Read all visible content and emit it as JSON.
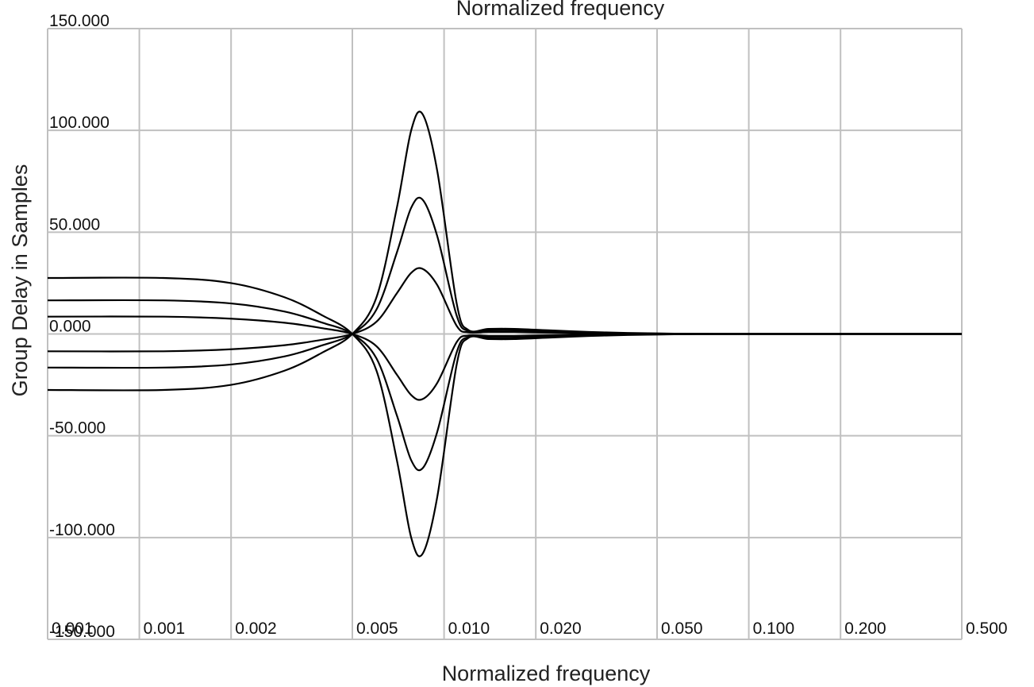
{
  "chart_data": {
    "type": "line",
    "title": "Normalized frequency",
    "xlabel": "Normalized frequency",
    "ylabel": "Group Delay in Samples",
    "xscale": "log",
    "xlim": [
      0.0005,
      0.5
    ],
    "ylim": [
      -150,
      150
    ],
    "grid": true,
    "x_ticks": [
      0.0005,
      0.001,
      0.002,
      0.005,
      0.01,
      0.02,
      0.05,
      0.1,
      0.2,
      0.5
    ],
    "x_tick_labels": [
      "0.001",
      "0.001",
      "0.002",
      "0.005",
      "0.010",
      "0.020",
      "0.050",
      "0.100",
      "0.200",
      "0.500"
    ],
    "y_ticks": [
      -150,
      -100,
      -50,
      0,
      50,
      100,
      150
    ],
    "y_tick_labels": [
      "-150.000",
      "-100.000",
      "-50.000",
      "0.000",
      "50.000",
      "100.000",
      "150.000"
    ],
    "line_color": "#000000",
    "grid_color": "#c0c0c0",
    "series": [
      {
        "x": [
          0.0005,
          0.0012,
          0.002,
          0.003,
          0.004,
          0.005,
          0.006,
          0.007,
          0.0078,
          0.0085,
          0.0095,
          0.011,
          0.012,
          0.014,
          0.017,
          0.022,
          0.03,
          0.04,
          0.06,
          0.1,
          0.5
        ],
        "values": [
          27.5,
          27.5,
          25,
          18,
          9,
          0,
          -18,
          -62,
          -100,
          -108,
          -80,
          -15,
          -2,
          -2.5,
          -2.5,
          -1.8,
          -1,
          -0.5,
          -0.1,
          0,
          0
        ]
      },
      {
        "x": [
          0.0005,
          0.0012,
          0.002,
          0.003,
          0.004,
          0.005,
          0.006,
          0.007,
          0.0078,
          0.0085,
          0.0095,
          0.011,
          0.012,
          0.014,
          0.017,
          0.022,
          0.03,
          0.04,
          0.06,
          0.1,
          0.5
        ],
        "values": [
          -27.5,
          -27.5,
          -25,
          -18,
          -9,
          0,
          18,
          62,
          100,
          108,
          80,
          15,
          2,
          2.5,
          2.5,
          1.8,
          1,
          0.5,
          0.1,
          0,
          0
        ]
      },
      {
        "x": [
          0.0005,
          0.0012,
          0.002,
          0.003,
          0.004,
          0.005,
          0.006,
          0.007,
          0.0078,
          0.0085,
          0.0095,
          0.011,
          0.012,
          0.014,
          0.017,
          0.022,
          0.03,
          0.04,
          0.06,
          0.1,
          0.5
        ],
        "values": [
          16.5,
          16.5,
          15,
          11,
          5.5,
          0,
          -12,
          -40,
          -62,
          -66,
          -48,
          -9,
          -1.5,
          -1.8,
          -1.8,
          -1.2,
          -0.7,
          -0.3,
          -0.1,
          0,
          0
        ]
      },
      {
        "x": [
          0.0005,
          0.0012,
          0.002,
          0.003,
          0.004,
          0.005,
          0.006,
          0.007,
          0.0078,
          0.0085,
          0.0095,
          0.011,
          0.012,
          0.014,
          0.017,
          0.022,
          0.03,
          0.04,
          0.06,
          0.1,
          0.5
        ],
        "values": [
          -16.5,
          -16.5,
          -15,
          -11,
          -5.5,
          0,
          12,
          40,
          62,
          66,
          48,
          9,
          1.5,
          1.8,
          1.8,
          1.2,
          0.7,
          0.3,
          0.1,
          0,
          0
        ]
      },
      {
        "x": [
          0.0005,
          0.0012,
          0.002,
          0.003,
          0.004,
          0.005,
          0.006,
          0.007,
          0.0078,
          0.0085,
          0.0095,
          0.011,
          0.012,
          0.014,
          0.017,
          0.022,
          0.03,
          0.04,
          0.06,
          0.1,
          0.5
        ],
        "values": [
          8.5,
          8.5,
          7.5,
          5.5,
          2.8,
          0,
          -6,
          -20,
          -30,
          -32,
          -24,
          -4,
          -0.8,
          -1,
          -1,
          -0.6,
          -0.3,
          -0.1,
          0,
          0,
          0
        ]
      },
      {
        "x": [
          0.0005,
          0.0012,
          0.002,
          0.003,
          0.004,
          0.005,
          0.006,
          0.007,
          0.0078,
          0.0085,
          0.0095,
          0.011,
          0.012,
          0.014,
          0.017,
          0.022,
          0.03,
          0.04,
          0.06,
          0.1,
          0.5
        ],
        "values": [
          -8.5,
          -8.5,
          -7.5,
          -5.5,
          -2.8,
          0,
          6,
          20,
          30,
          32,
          24,
          4,
          0.8,
          1,
          1,
          0.6,
          0.3,
          0.1,
          0,
          0,
          0
        ]
      }
    ]
  }
}
